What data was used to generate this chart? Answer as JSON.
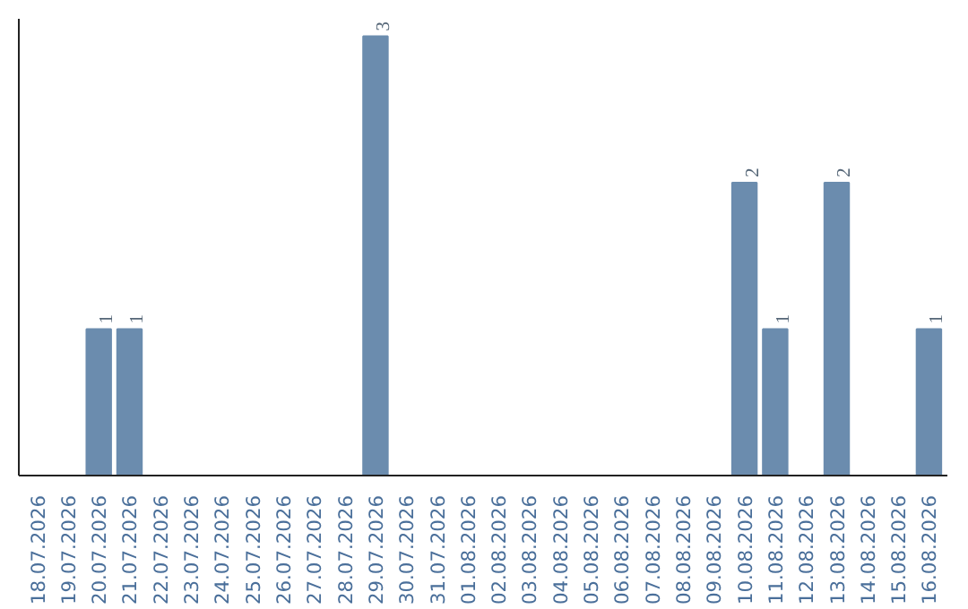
{
  "chart_data": {
    "type": "bar",
    "categories": [
      "18.07.2026",
      "19.07.2026",
      "20.07.2026",
      "21.07.2026",
      "22.07.2026",
      "23.07.2026",
      "24.07.2026",
      "25.07.2026",
      "26.07.2026",
      "27.07.2026",
      "28.07.2026",
      "29.07.2026",
      "30.07.2026",
      "31.07.2026",
      "01.08.2026",
      "02.08.2026",
      "03.08.2026",
      "04.08.2026",
      "05.08.2026",
      "06.08.2026",
      "07.08.2026",
      "08.08.2026",
      "09.08.2026",
      "10.08.2026",
      "11.08.2026",
      "12.08.2026",
      "13.08.2026",
      "14.08.2026",
      "15.08.2026",
      "16.08.2026"
    ],
    "values": [
      0,
      0,
      1,
      1,
      0,
      0,
      0,
      0,
      0,
      0,
      0,
      3,
      0,
      0,
      0,
      0,
      0,
      0,
      0,
      0,
      0,
      0,
      0,
      2,
      1,
      0,
      2,
      0,
      0,
      1
    ],
    "value_labels": [
      null,
      null,
      "1",
      "1",
      null,
      null,
      null,
      null,
      null,
      null,
      null,
      "3",
      null,
      null,
      null,
      null,
      null,
      null,
      null,
      null,
      null,
      null,
      null,
      "2",
      "1",
      null,
      "2",
      null,
      null,
      "1"
    ],
    "color": "#6b8cae",
    "grid": false
  }
}
